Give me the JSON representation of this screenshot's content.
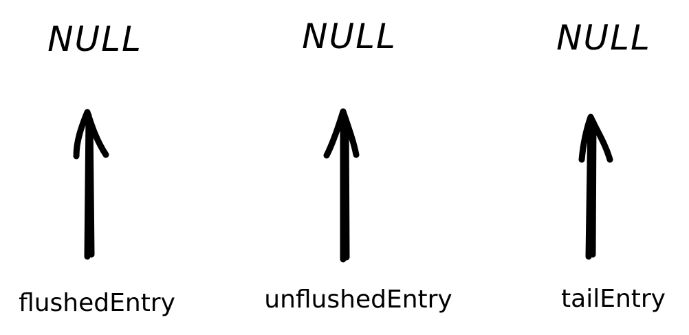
{
  "colors": {
    "background": "#ffffff",
    "ink": "#000000"
  },
  "columns": [
    {
      "null_text": "NULL",
      "pointer_label": "flushedEntry"
    },
    {
      "null_text": "NULL",
      "pointer_label": "unflushedEntry"
    },
    {
      "null_text": "NULL",
      "pointer_label": "tailEntry"
    }
  ]
}
